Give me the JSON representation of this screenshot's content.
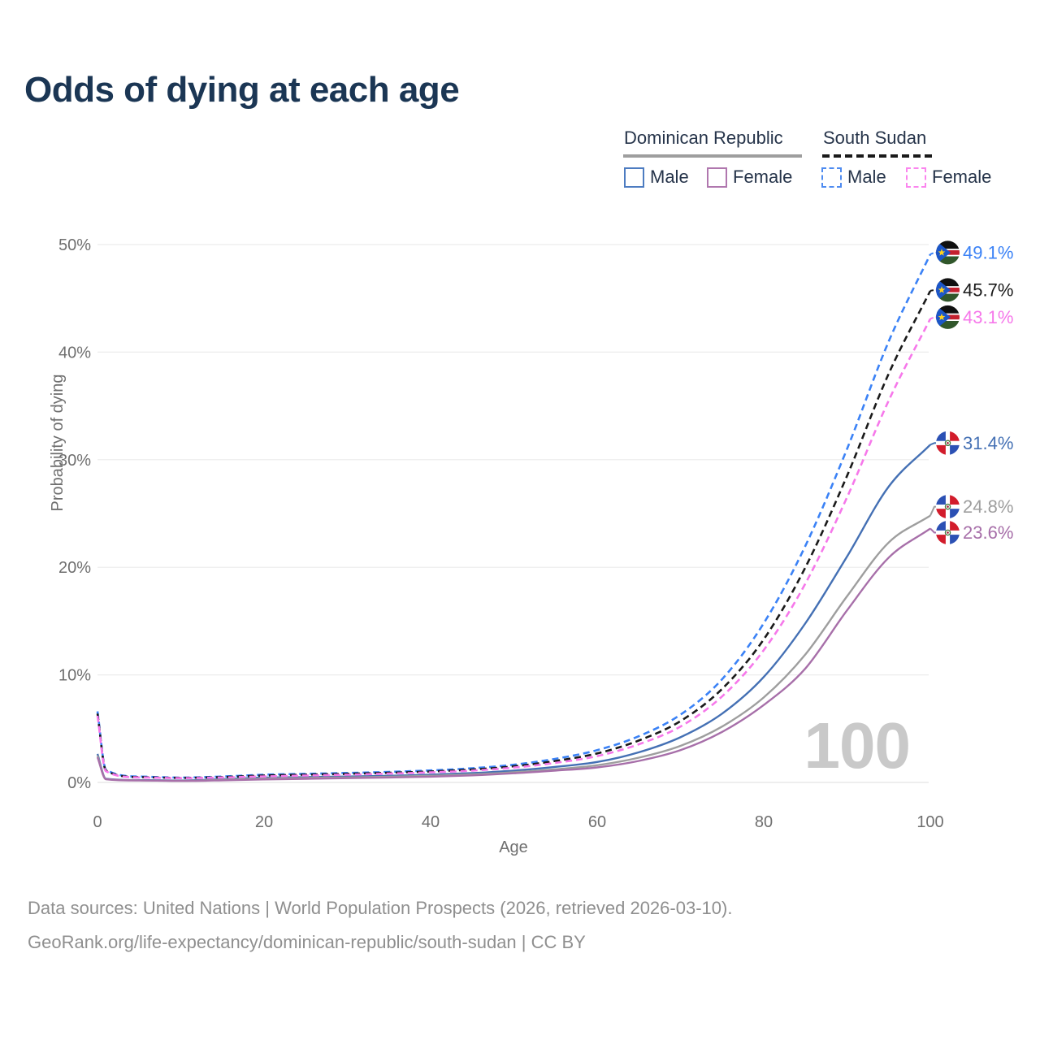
{
  "title": "Odds of dying at each age",
  "legend": {
    "groups": [
      {
        "label": "Dominican Republic",
        "country": "dominican-republic",
        "line_style": "solid",
        "underline_color": "#9e9e9e",
        "items": [
          {
            "label": "Male",
            "color": "#4d7cc1"
          },
          {
            "label": "Female",
            "color": "#b077ae"
          }
        ]
      },
      {
        "label": "South Sudan",
        "country": "south-sudan",
        "line_style": "dashed",
        "underline_color": "#1a1a1a",
        "items": [
          {
            "label": "Male",
            "color": "#4e8bf0"
          },
          {
            "label": "Female",
            "color": "#fb85ee"
          }
        ]
      }
    ]
  },
  "chart_data": {
    "type": "line",
    "title": "Odds of dying at each age",
    "x_label": "Age",
    "y_label": "Probability of dying",
    "watermark": "100",
    "grid": "horizontal",
    "legend_position": "top-right",
    "x_range": [
      0,
      100
    ],
    "y_range_percent": [
      0,
      50
    ],
    "x_ticks": [
      0,
      20,
      40,
      60,
      80,
      100
    ],
    "y_tick_values": [
      0,
      10,
      20,
      30,
      40,
      50
    ],
    "y_tick_labels": [
      "0%",
      "10%",
      "20%",
      "30%",
      "40%",
      "50%"
    ],
    "x": [
      0,
      1,
      5,
      10,
      15,
      20,
      25,
      30,
      35,
      40,
      45,
      50,
      55,
      60,
      65,
      70,
      75,
      80,
      85,
      90,
      95,
      100
    ],
    "series": [
      {
        "name": "Dominican Republic Male",
        "country": "dominican-republic",
        "sex": "male",
        "line_style": "solid",
        "color": "#4470b4",
        "end_label": "31.4%",
        "end_value": 31.4,
        "label_dy": -2,
        "values": [
          2.65,
          0.35,
          0.22,
          0.18,
          0.3,
          0.45,
          0.5,
          0.55,
          0.62,
          0.72,
          0.87,
          1.1,
          1.45,
          1.9,
          2.8,
          4.2,
          6.4,
          9.8,
          14.8,
          21.0,
          27.5,
          31.4
        ]
      },
      {
        "name": "Dominican Republic Both sexes",
        "country": "dominican-republic",
        "sex": "both",
        "line_style": "solid",
        "color": "#9e9e9e",
        "end_label": "24.8%",
        "end_value": 24.8,
        "label_dy": -11,
        "values": [
          2.5,
          0.32,
          0.2,
          0.16,
          0.25,
          0.37,
          0.42,
          0.47,
          0.53,
          0.62,
          0.75,
          0.95,
          1.22,
          1.6,
          2.3,
          3.4,
          5.2,
          7.9,
          11.9,
          17.3,
          22.3,
          24.8
        ]
      },
      {
        "name": "Dominican Republic Female",
        "country": "dominican-republic",
        "sex": "female",
        "line_style": "solid",
        "color": "#a76fa9",
        "end_label": "23.6%",
        "end_value": 23.6,
        "label_dy": 5,
        "values": [
          2.35,
          0.3,
          0.18,
          0.14,
          0.2,
          0.28,
          0.34,
          0.4,
          0.46,
          0.54,
          0.66,
          0.85,
          1.1,
          1.4,
          2.0,
          3.0,
          4.7,
          7.2,
          10.6,
          16.0,
          20.9,
          23.6
        ]
      },
      {
        "name": "South Sudan Male",
        "country": "south-sudan",
        "sex": "male",
        "line_style": "dashed",
        "color": "#3b82f6",
        "end_label": "49.1%",
        "end_value": 49.1,
        "label_dy": -2,
        "values": [
          6.6,
          1.2,
          0.55,
          0.45,
          0.55,
          0.72,
          0.8,
          0.88,
          0.98,
          1.12,
          1.32,
          1.65,
          2.2,
          3.0,
          4.3,
          6.3,
          9.6,
          14.8,
          22.0,
          31.0,
          41.0,
          49.1
        ]
      },
      {
        "name": "South Sudan Both sexes",
        "country": "south-sudan",
        "sex": "both",
        "line_style": "dashed",
        "color": "#1a1a1a",
        "end_label": "45.7%",
        "end_value": 45.7,
        "label_dy": -1,
        "values": [
          6.4,
          1.12,
          0.5,
          0.42,
          0.5,
          0.64,
          0.72,
          0.8,
          0.9,
          1.02,
          1.2,
          1.5,
          2.0,
          2.7,
          3.9,
          5.7,
          8.7,
          13.3,
          20.0,
          28.5,
          38.0,
          45.7
        ]
      },
      {
        "name": "South Sudan Female",
        "country": "south-sudan",
        "sex": "female",
        "line_style": "dashed",
        "color": "#f678ea",
        "end_label": "43.1%",
        "end_value": 43.1,
        "label_dy": -2,
        "values": [
          6.2,
          1.05,
          0.47,
          0.4,
          0.46,
          0.56,
          0.64,
          0.72,
          0.82,
          0.94,
          1.1,
          1.38,
          1.82,
          2.45,
          3.55,
          5.2,
          8.0,
          12.3,
          18.5,
          26.5,
          35.5,
          43.1
        ]
      }
    ]
  },
  "footer": {
    "line1": "Data sources: United Nations | World Population Prospects (2026, retrieved 2026-03-10).",
    "line2": "GeoRank.org/life-expectancy/dominican-republic/south-sudan | CC BY"
  }
}
